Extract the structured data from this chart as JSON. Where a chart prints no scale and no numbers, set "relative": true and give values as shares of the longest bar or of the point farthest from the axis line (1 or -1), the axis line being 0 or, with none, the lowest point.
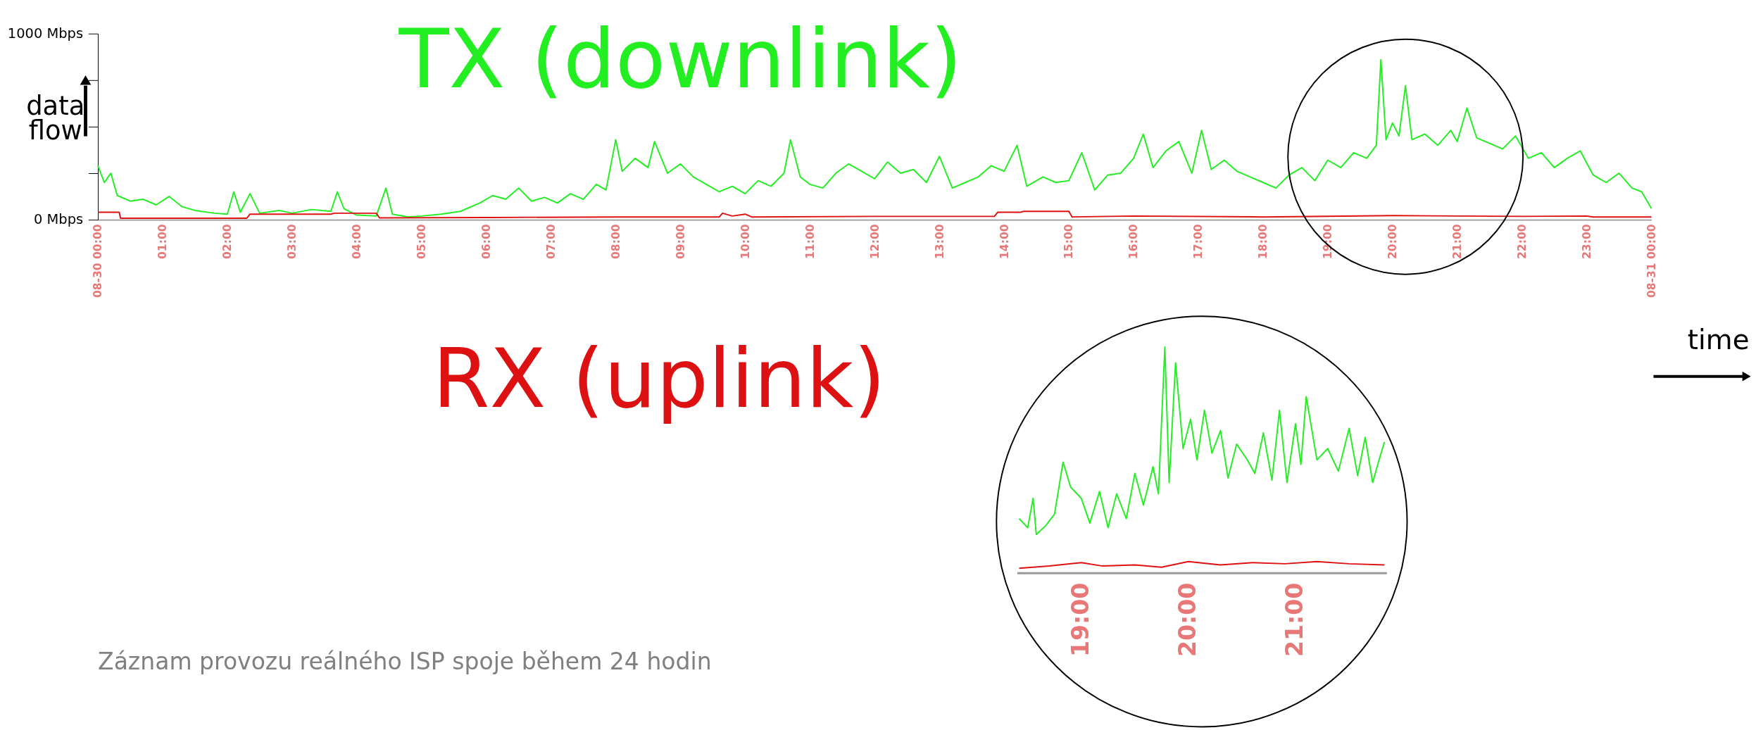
{
  "chart_data": [
    {
      "type": "line",
      "x": [
        0,
        0.1,
        0.2,
        0.3,
        0.5,
        0.7,
        0.9,
        1.1,
        1.3,
        1.5,
        1.8,
        2.0,
        2.1,
        2.2,
        2.35,
        2.5,
        2.8,
        3.0,
        3.3,
        3.6,
        3.7,
        3.8,
        4.0,
        4.3,
        4.45,
        4.55,
        4.8,
        5.0,
        5.3,
        5.6,
        5.9,
        6.1,
        6.3,
        6.5,
        6.7,
        6.9,
        7.1,
        7.3,
        7.5,
        7.7,
        7.85,
        8.0,
        8.1,
        8.3,
        8.5,
        8.6,
        8.8,
        9.0,
        9.2,
        9.4,
        9.6,
        9.8,
        10.0,
        10.2,
        10.4,
        10.6,
        10.7,
        10.85,
        11.0,
        11.2,
        11.4,
        11.6,
        11.8,
        12.0,
        12.2,
        12.4,
        12.6,
        12.8,
        13.0,
        13.2,
        13.4,
        13.6,
        13.8,
        14.0,
        14.2,
        14.35,
        14.6,
        14.8,
        15.0,
        15.2,
        15.4,
        15.6,
        15.8,
        16.0,
        16.15,
        16.3,
        16.5,
        16.7,
        16.9,
        17.05,
        17.2,
        17.4,
        17.6,
        17.8,
        18.0,
        18.2,
        18.4,
        18.6,
        18.8,
        19.0,
        19.2,
        19.4,
        19.6,
        19.75,
        19.82,
        19.9,
        20.0,
        20.1,
        20.2,
        20.3,
        20.5,
        20.7,
        20.9,
        21.0,
        21.15,
        21.3,
        21.5,
        21.7,
        21.9,
        22.1,
        22.3,
        22.5,
        22.7,
        22.9,
        23.1,
        23.3,
        23.5,
        23.7,
        23.85,
        24.0
      ],
      "series": [
        {
          "name": "TX (downlink)",
          "color": "#22ee22",
          "values": [
            290,
            200,
            250,
            130,
            100,
            110,
            80,
            125,
            70,
            50,
            35,
            30,
            150,
            40,
            140,
            35,
            50,
            35,
            55,
            45,
            150,
            60,
            25,
            20,
            170,
            30,
            15,
            20,
            30,
            45,
            90,
            130,
            110,
            170,
            100,
            120,
            90,
            140,
            110,
            190,
            160,
            430,
            260,
            330,
            280,
            420,
            250,
            300,
            230,
            190,
            150,
            180,
            140,
            210,
            180,
            250,
            430,
            230,
            190,
            170,
            250,
            300,
            260,
            220,
            310,
            250,
            270,
            200,
            340,
            170,
            200,
            230,
            290,
            260,
            400,
            180,
            230,
            200,
            210,
            360,
            160,
            240,
            250,
            330,
            460,
            280,
            370,
            420,
            250,
            480,
            270,
            320,
            260,
            230,
            200,
            170,
            240,
            280,
            210,
            320,
            280,
            360,
            330,
            400,
            860,
            430,
            520,
            450,
            720,
            430,
            460,
            400,
            480,
            420,
            600,
            440,
            410,
            380,
            450,
            330,
            360,
            280,
            330,
            370,
            240,
            200,
            250,
            170,
            150,
            60
          ]
        },
        {
          "name": "RX (uplink)",
          "color": "#dd1111",
          "x": [
            0,
            0.33,
            0.35,
            2.3,
            2.35,
            3.6,
            3.65,
            4.3,
            4.35,
            6,
            8,
            9.6,
            9.65,
            9.8,
            10,
            10.1,
            12,
            13.85,
            13.9,
            14.25,
            14.3,
            15.0,
            15.05,
            16,
            18,
            20,
            22,
            23,
            23.1,
            24
          ],
          "values": [
            40,
            40,
            8,
            8,
            30,
            30,
            35,
            35,
            10,
            12,
            15,
            15,
            35,
            20,
            30,
            15,
            18,
            18,
            40,
            40,
            45,
            45,
            15,
            20,
            15,
            22,
            18,
            20,
            15,
            15
          ]
        }
      ],
      "xlim": [
        0,
        24
      ],
      "xticks": [
        {
          "value": 0,
          "label": "08-30 00:00"
        },
        {
          "value": 1,
          "label": "01:00"
        },
        {
          "value": 2,
          "label": "02:00"
        },
        {
          "value": 3,
          "label": "03:00"
        },
        {
          "value": 4,
          "label": "04:00"
        },
        {
          "value": 5,
          "label": "05:00"
        },
        {
          "value": 6,
          "label": "06:00"
        },
        {
          "value": 7,
          "label": "07:00"
        },
        {
          "value": 8,
          "label": "08:00"
        },
        {
          "value": 9,
          "label": "09:00"
        },
        {
          "value": 10,
          "label": "10:00"
        },
        {
          "value": 11,
          "label": "11:00"
        },
        {
          "value": 12,
          "label": "12:00"
        },
        {
          "value": 13,
          "label": "13:00"
        },
        {
          "value": 14,
          "label": "14:00"
        },
        {
          "value": 15,
          "label": "15:00"
        },
        {
          "value": 16,
          "label": "16:00"
        },
        {
          "value": 17,
          "label": "17:00"
        },
        {
          "value": 18,
          "label": "18:00"
        },
        {
          "value": 19,
          "label": "19:00"
        },
        {
          "value": 20,
          "label": "20:00"
        },
        {
          "value": 21,
          "label": "21:00"
        },
        {
          "value": 22,
          "label": "22:00"
        },
        {
          "value": 23,
          "label": "23:00"
        },
        {
          "value": 24,
          "label": "08-31 00:00"
        }
      ],
      "ylim": [
        0,
        1000
      ],
      "yticks": [
        {
          "value": 0,
          "label": "0 Mbps"
        },
        {
          "value": 250,
          "label": null
        },
        {
          "value": 500,
          "label": null
        },
        {
          "value": 750,
          "label": null
        },
        {
          "value": 1000,
          "label": "1000 Mbps"
        }
      ],
      "grid": false,
      "annotations": [
        "data flow",
        "time",
        "Záznam provozu reálného ISP spoje během 24 hodin"
      ]
    },
    {
      "type": "line",
      "relative": true,
      "tick_labels": "x",
      "grid": false,
      "x": [
        18.42,
        18.5,
        18.55,
        18.58,
        18.67,
        18.75,
        18.83,
        18.9,
        19.0,
        19.08,
        19.17,
        19.25,
        19.33,
        19.42,
        19.5,
        19.58,
        19.67,
        19.72,
        19.78,
        19.82,
        19.88,
        19.95,
        20.02,
        20.08,
        20.15,
        20.22,
        20.3,
        20.37,
        20.45,
        20.55,
        20.62,
        20.7,
        20.78,
        20.85,
        20.92,
        21.0,
        21.05,
        21.1,
        21.2,
        21.3,
        21.4,
        21.5,
        21.58,
        21.65,
        21.72,
        21.78,
        21.83
      ],
      "series": [
        {
          "color": "#22ee22",
          "values": [
            0.24,
            0.2,
            0.33,
            0.17,
            0.21,
            0.26,
            0.49,
            0.38,
            0.33,
            0.22,
            0.36,
            0.2,
            0.35,
            0.24,
            0.44,
            0.3,
            0.47,
            0.35,
            1.0,
            0.4,
            0.93,
            0.55,
            0.68,
            0.5,
            0.72,
            0.53,
            0.63,
            0.42,
            0.57,
            0.5,
            0.44,
            0.62,
            0.41,
            0.72,
            0.4,
            0.66,
            0.48,
            0.78,
            0.5,
            0.55,
            0.45,
            0.64,
            0.43,
            0.6,
            0.4,
            0.5,
            0.58
          ]
        },
        {
          "color": "#dd1111",
          "x": [
            18.42,
            18.7,
            19.0,
            19.2,
            19.5,
            19.75,
            20.0,
            20.3,
            20.6,
            20.9,
            21.2,
            21.5,
            21.83
          ],
          "values": [
            0.02,
            0.03,
            0.045,
            0.03,
            0.035,
            0.025,
            0.05,
            0.035,
            0.045,
            0.04,
            0.05,
            0.04,
            0.035
          ]
        }
      ],
      "xlim": [
        18.4,
        21.85
      ],
      "xticks": [
        {
          "value": 19,
          "label": "19:00"
        },
        {
          "value": 20,
          "label": "20:00"
        },
        {
          "value": 21,
          "label": "21:00"
        }
      ]
    }
  ]
}
